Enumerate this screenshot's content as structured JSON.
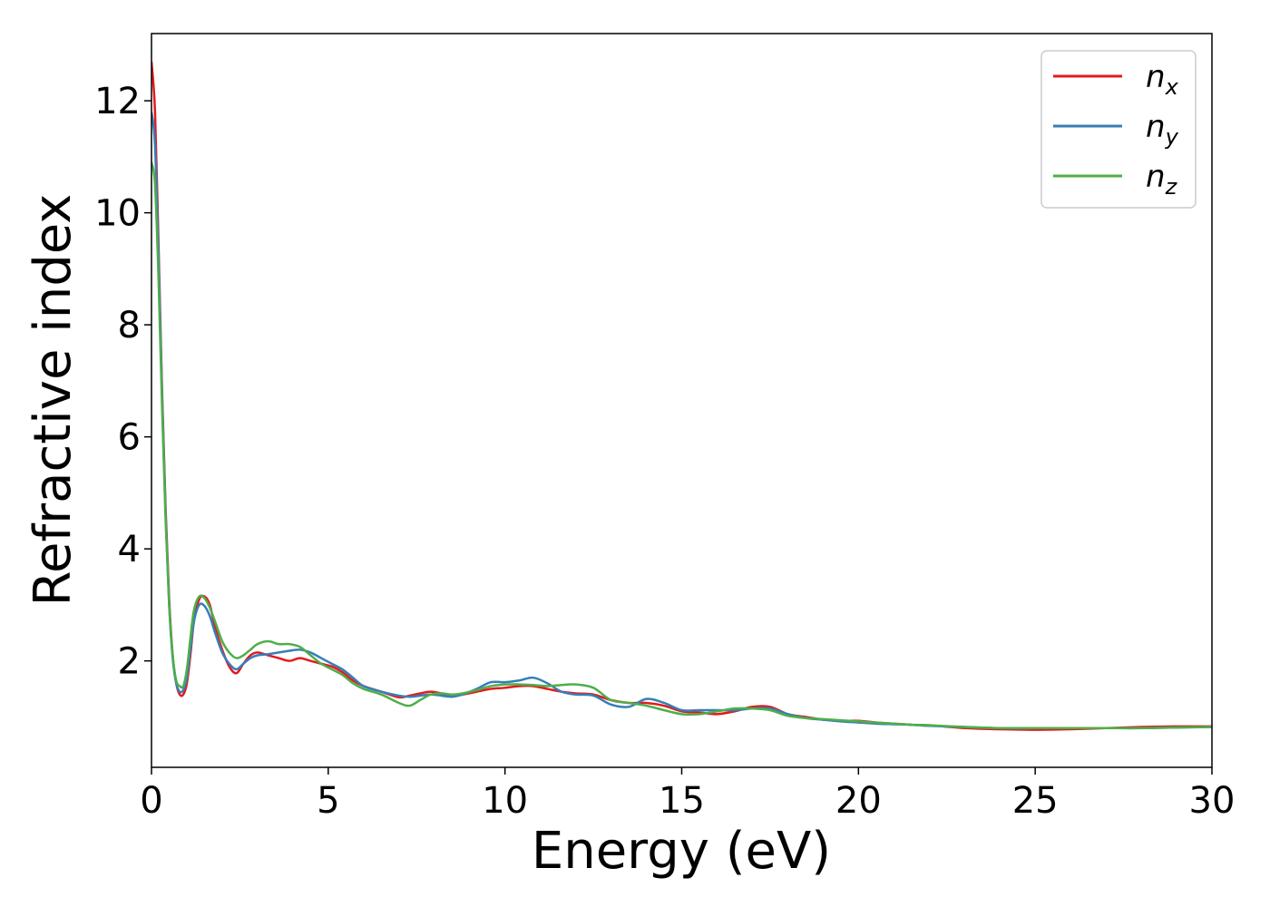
{
  "chart_data": {
    "type": "line",
    "xlabel": "Energy (eV)",
    "ylabel": "Refractive index",
    "xlim": [
      0,
      30
    ],
    "ylim": [
      0.1,
      13.2
    ],
    "xticks": [
      0,
      5,
      10,
      15,
      20,
      25,
      30
    ],
    "yticks": [
      2,
      4,
      6,
      8,
      10,
      12
    ],
    "grid": false,
    "legend_position": "top-right",
    "series": [
      {
        "name": "n",
        "subscript": "x",
        "color": "#e41a1c",
        "x": [
          0,
          0.1,
          0.2,
          0.3,
          0.4,
          0.5,
          0.6,
          0.7,
          0.8,
          0.9,
          1.0,
          1.1,
          1.2,
          1.35,
          1.5,
          1.65,
          1.8,
          2.0,
          2.2,
          2.4,
          2.6,
          2.8,
          3.0,
          3.3,
          3.6,
          3.9,
          4.2,
          4.5,
          4.8,
          5.1,
          5.4,
          5.7,
          6.0,
          6.5,
          7.0,
          7.3,
          7.6,
          7.9,
          8.2,
          8.5,
          8.8,
          9.2,
          9.6,
          10.0,
          10.4,
          10.8,
          11.2,
          11.6,
          12.0,
          12.5,
          13.0,
          13.5,
          14.0,
          14.5,
          15.0,
          15.5,
          16.0,
          16.5,
          17.0,
          17.5,
          18.0,
          18.5,
          19.0,
          19.5,
          20.0,
          20.5,
          21.0,
          21.5,
          22.0,
          23.0,
          24.0,
          25.0,
          26.0,
          27.0,
          28.0,
          29.0,
          30.0
        ],
        "y": [
          12.7,
          11.8,
          9.4,
          6.8,
          4.7,
          3.1,
          2.1,
          1.6,
          1.4,
          1.4,
          1.6,
          2.1,
          2.7,
          3.1,
          3.15,
          3.0,
          2.6,
          2.2,
          1.9,
          1.78,
          1.95,
          2.1,
          2.15,
          2.1,
          2.05,
          2.0,
          2.05,
          2.0,
          1.95,
          1.9,
          1.8,
          1.65,
          1.55,
          1.45,
          1.35,
          1.38,
          1.42,
          1.45,
          1.42,
          1.38,
          1.4,
          1.45,
          1.5,
          1.52,
          1.55,
          1.55,
          1.5,
          1.45,
          1.42,
          1.4,
          1.3,
          1.25,
          1.25,
          1.2,
          1.1,
          1.08,
          1.05,
          1.1,
          1.18,
          1.18,
          1.05,
          1.0,
          0.95,
          0.93,
          0.93,
          0.9,
          0.88,
          0.86,
          0.85,
          0.8,
          0.78,
          0.77,
          0.78,
          0.8,
          0.82,
          0.83,
          0.83
        ]
      },
      {
        "name": "n",
        "subscript": "y",
        "color": "#377eb8",
        "x": [
          0,
          0.1,
          0.2,
          0.3,
          0.4,
          0.5,
          0.6,
          0.7,
          0.8,
          0.9,
          1.0,
          1.1,
          1.2,
          1.35,
          1.5,
          1.65,
          1.8,
          2.0,
          2.2,
          2.4,
          2.6,
          2.8,
          3.0,
          3.3,
          3.6,
          3.9,
          4.2,
          4.5,
          4.8,
          5.1,
          5.4,
          5.7,
          6.0,
          6.5,
          7.0,
          7.3,
          7.6,
          7.9,
          8.2,
          8.5,
          8.8,
          9.2,
          9.6,
          10.0,
          10.4,
          10.8,
          11.2,
          11.6,
          12.0,
          12.5,
          13.0,
          13.5,
          14.0,
          14.5,
          15.0,
          15.5,
          16.0,
          16.5,
          17.0,
          17.5,
          18.0,
          18.5,
          19.0,
          19.5,
          20.0,
          20.5,
          21.0,
          21.5,
          22.0,
          23.0,
          24.0,
          25.0,
          26.0,
          27.0,
          28.0,
          29.0,
          30.0
        ],
        "y": [
          11.8,
          11.2,
          9.2,
          6.7,
          4.6,
          3.0,
          2.05,
          1.6,
          1.45,
          1.48,
          1.7,
          2.2,
          2.7,
          3.0,
          2.98,
          2.8,
          2.5,
          2.15,
          1.95,
          1.85,
          1.95,
          2.05,
          2.1,
          2.12,
          2.15,
          2.18,
          2.2,
          2.15,
          2.05,
          1.95,
          1.85,
          1.7,
          1.55,
          1.45,
          1.38,
          1.36,
          1.38,
          1.4,
          1.38,
          1.36,
          1.4,
          1.5,
          1.62,
          1.62,
          1.65,
          1.7,
          1.6,
          1.45,
          1.4,
          1.38,
          1.22,
          1.18,
          1.32,
          1.25,
          1.12,
          1.12,
          1.12,
          1.12,
          1.15,
          1.15,
          1.05,
          0.98,
          0.95,
          0.92,
          0.9,
          0.88,
          0.87,
          0.86,
          0.84,
          0.82,
          0.8,
          0.8,
          0.8,
          0.8,
          0.8,
          0.81,
          0.82
        ]
      },
      {
        "name": "n",
        "subscript": "z",
        "color": "#4daf4a",
        "x": [
          0,
          0.1,
          0.2,
          0.3,
          0.4,
          0.5,
          0.6,
          0.7,
          0.8,
          0.9,
          1.0,
          1.1,
          1.2,
          1.35,
          1.5,
          1.65,
          1.8,
          2.0,
          2.2,
          2.4,
          2.6,
          2.8,
          3.0,
          3.3,
          3.6,
          3.9,
          4.2,
          4.5,
          4.8,
          5.1,
          5.4,
          5.7,
          6.0,
          6.5,
          7.0,
          7.3,
          7.6,
          7.9,
          8.2,
          8.5,
          8.8,
          9.2,
          9.6,
          10.0,
          10.4,
          10.8,
          11.2,
          11.6,
          12.0,
          12.5,
          13.0,
          13.5,
          14.0,
          14.5,
          15.0,
          15.5,
          16.0,
          16.5,
          17.0,
          17.5,
          18.0,
          18.5,
          19.0,
          19.5,
          20.0,
          20.5,
          21.0,
          21.5,
          22.0,
          23.0,
          24.0,
          25.0,
          26.0,
          27.0,
          28.0,
          29.0,
          30.0
        ],
        "y": [
          10.9,
          10.5,
          8.8,
          6.5,
          4.5,
          3.0,
          2.1,
          1.65,
          1.55,
          1.55,
          1.85,
          2.4,
          2.9,
          3.15,
          3.12,
          2.95,
          2.7,
          2.35,
          2.15,
          2.05,
          2.1,
          2.2,
          2.3,
          2.35,
          2.3,
          2.3,
          2.25,
          2.1,
          1.95,
          1.85,
          1.75,
          1.6,
          1.5,
          1.4,
          1.25,
          1.2,
          1.3,
          1.4,
          1.42,
          1.4,
          1.42,
          1.48,
          1.55,
          1.58,
          1.58,
          1.57,
          1.55,
          1.57,
          1.58,
          1.52,
          1.3,
          1.25,
          1.2,
          1.12,
          1.05,
          1.05,
          1.1,
          1.15,
          1.15,
          1.12,
          1.02,
          0.98,
          0.96,
          0.94,
          0.92,
          0.9,
          0.88,
          0.86,
          0.85,
          0.82,
          0.8,
          0.8,
          0.8,
          0.8,
          0.8,
          0.81,
          0.82
        ]
      }
    ]
  }
}
